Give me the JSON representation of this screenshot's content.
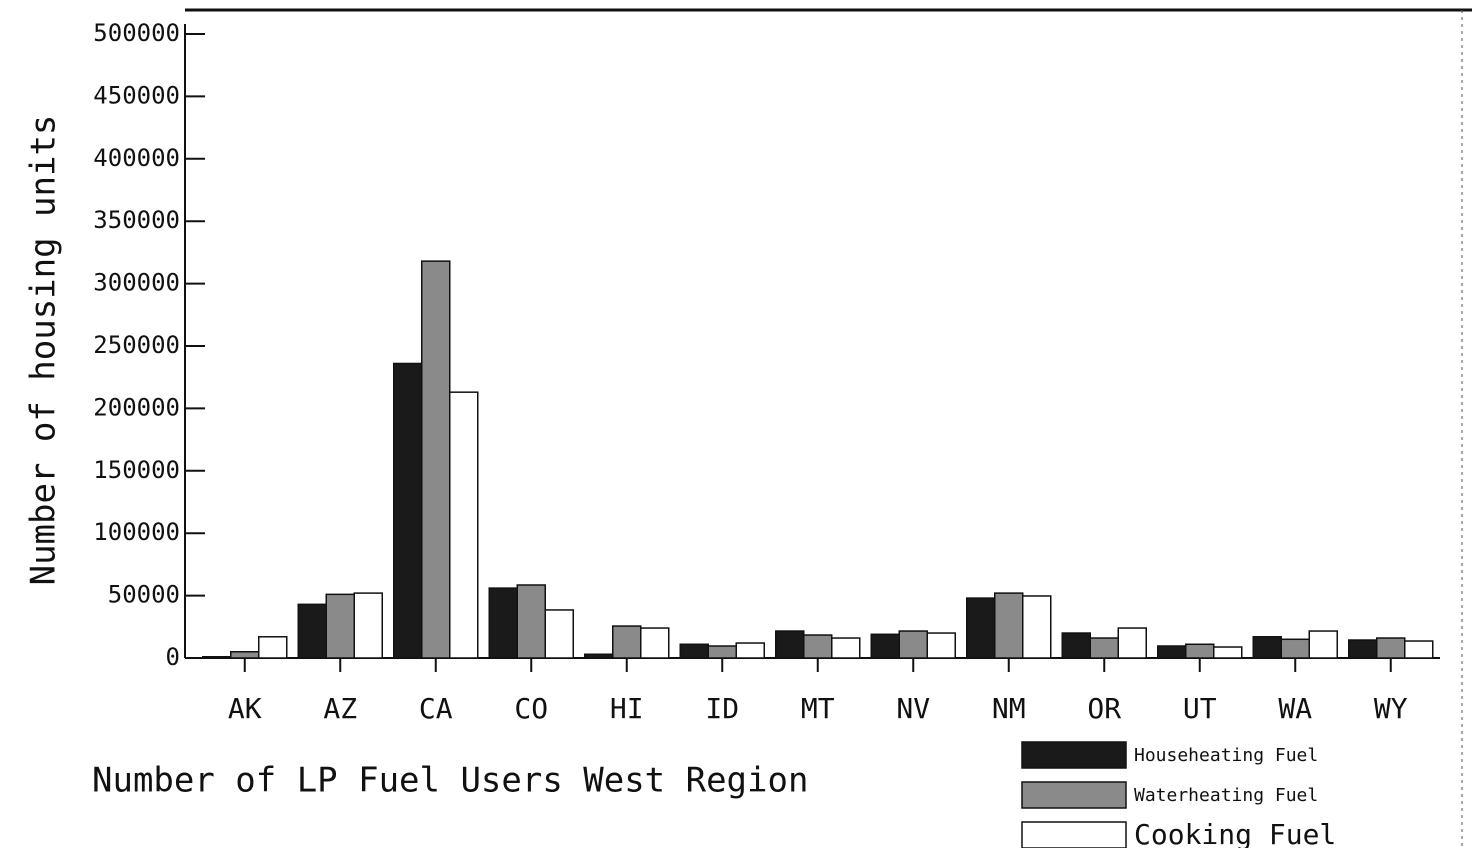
{
  "chart_data": {
    "type": "bar",
    "title": "Number of LP Fuel Users West Region",
    "y_label": "Number of housing units",
    "categories": [
      "AK",
      "AZ",
      "CA",
      "CO",
      "HI",
      "ID",
      "MT",
      "NV",
      "NM",
      "OR",
      "UT",
      "WA",
      "WY"
    ],
    "series": [
      {
        "name": "Househeating Fuel",
        "color": "#1a1a1a",
        "values": [
          1000,
          43000,
          236000,
          56000,
          3000,
          11000,
          21600,
          19000,
          48000,
          20000,
          9600,
          17000,
          14400
        ]
      },
      {
        "name": "Waterheating Fuel",
        "color": "#8a8a8a",
        "values": [
          5000,
          51000,
          318000,
          58500,
          25600,
          9600,
          18400,
          21600,
          52000,
          16000,
          11000,
          15000,
          16000
        ]
      },
      {
        "name": "Cooking Fuel",
        "color": "#ffffff",
        "values": [
          17000,
          52000,
          213000,
          38500,
          24000,
          12000,
          16000,
          20000,
          49700,
          24000,
          8800,
          21600,
          13600
        ]
      }
    ],
    "ylim": [
      0,
      500000
    ],
    "yticks": [
      0,
      50000,
      100000,
      150000,
      200000,
      250000,
      300000,
      350000,
      400000,
      450000,
      500000
    ]
  }
}
